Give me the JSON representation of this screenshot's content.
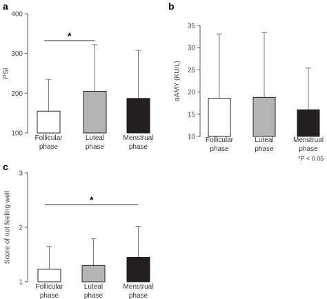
{
  "chart_data": [
    {
      "panel": "a",
      "type": "bar",
      "categories": [
        [
          "Follicular",
          "phase"
        ],
        [
          "Luteal",
          "phase"
        ],
        [
          "Menstrual",
          "phase"
        ]
      ],
      "values": [
        155,
        205,
        187
      ],
      "error_upper": [
        235,
        322,
        308
      ],
      "bar_colors": [
        "#ffffff",
        "#b4b4b4",
        "#231f20"
      ],
      "ylabel": "PSI",
      "ylim": [
        100,
        400
      ],
      "yticks": [
        100,
        200,
        300,
        400
      ],
      "significance": {
        "from": 0,
        "to": 1,
        "label": "*"
      }
    },
    {
      "panel": "b",
      "type": "bar",
      "categories": [
        [
          "Follicular",
          "phase"
        ],
        [
          "Luteal",
          "phase"
        ],
        [
          "Menstrual",
          "phase"
        ]
      ],
      "values": [
        18.6,
        18.8,
        16.0
      ],
      "error_upper": [
        33.1,
        33.4,
        25.4
      ],
      "bar_colors": [
        "#ffffff",
        "#b4b4b4",
        "#231f20"
      ],
      "ylabel": "αAMY (KU/L)",
      "ylim": [
        10,
        35
      ],
      "yticks": [
        10,
        15,
        20,
        25,
        30,
        35
      ],
      "footnote": "*P < 0.05"
    },
    {
      "panel": "c",
      "type": "bar",
      "categories": [
        [
          "Follicular",
          "phase"
        ],
        [
          "Luteal",
          "phase"
        ],
        [
          "Menstrual",
          "phase"
        ]
      ],
      "values": [
        1.23,
        1.3,
        1.45
      ],
      "error_upper": [
        1.65,
        1.79,
        2.02
      ],
      "bar_colors": [
        "#ffffff",
        "#b4b4b4",
        "#231f20"
      ],
      "ylabel": "Score of not feeling well",
      "ylim": [
        1,
        3
      ],
      "yticks": [
        1,
        2,
        3
      ],
      "significance": {
        "from": 0,
        "to": 2,
        "label": "*"
      }
    }
  ]
}
